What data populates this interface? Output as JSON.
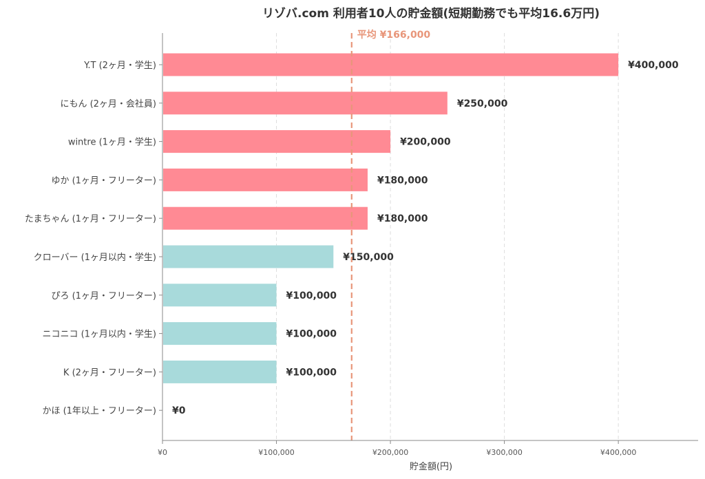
{
  "chart_data": {
    "type": "bar",
    "orientation": "horizontal",
    "title": "リゾバ.com 利用者10人の貯金額(短期勤務でも平均16.6万円)",
    "xlabel": "貯金額(円)",
    "ylabel": "",
    "xlim": [
      0,
      470000
    ],
    "xticks": [
      0,
      100000,
      200000,
      300000,
      400000
    ],
    "xtick_labels": [
      "¥0",
      "¥100,000",
      "¥200,000",
      "¥300,000",
      "¥400,000"
    ],
    "grid": "vertical-dashed",
    "categories": [
      "Y.T (2ヶ月・学生)",
      "にもん (2ヶ月・会社員)",
      "wintre (1ヶ月・学生)",
      "ゆか (1ヶ月・フリーター)",
      "たまちゃん (1ヶ月・フリーター)",
      "クローバー (1ヶ月以内・学生)",
      "ぴろ (1ヶ月・フリーター)",
      "ニコニコ (1ヶ月以内・学生)",
      "K (2ヶ月・フリーター)",
      "かほ (1年以上・フリーター)"
    ],
    "values": [
      400000,
      250000,
      200000,
      180000,
      180000,
      150000,
      100000,
      100000,
      100000,
      0
    ],
    "value_labels": [
      "¥400,000",
      "¥250,000",
      "¥200,000",
      "¥180,000",
      "¥180,000",
      "¥150,000",
      "¥100,000",
      "¥100,000",
      "¥100,000",
      "¥0"
    ],
    "bar_colors": [
      "#ff8a94",
      "#ff8a94",
      "#ff8a94",
      "#ff8a94",
      "#ff8a94",
      "#a8dadb",
      "#a8dadb",
      "#a8dadb",
      "#a8dadb",
      "#a8dadb"
    ],
    "average": {
      "value": 166000,
      "label": "平均 ¥166,000",
      "color": "#e8967a"
    }
  }
}
